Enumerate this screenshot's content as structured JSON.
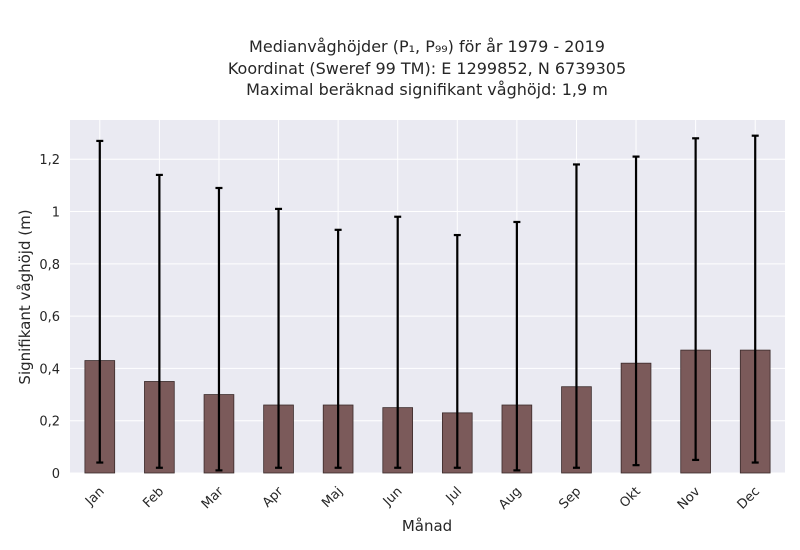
{
  "chart_data": {
    "type": "bar",
    "title_lines": [
      "Medianvåghöjder (P₁, P₉₉) för år 1979 - 2019",
      "Koordinat (Sweref 99 TM): E 1299852, N 6739305",
      "Maximal beräknad signifikant våghöjd: 1,9 m"
    ],
    "xlabel": "Månad",
    "ylabel": "Signifikant våghöjd (m)",
    "categories": [
      "Jan",
      "Feb",
      "Mar",
      "Apr",
      "Maj",
      "Jun",
      "Jul",
      "Aug",
      "Sep",
      "Okt",
      "Nov",
      "Dec"
    ],
    "values": [
      0.43,
      0.35,
      0.3,
      0.26,
      0.26,
      0.25,
      0.23,
      0.26,
      0.33,
      0.42,
      0.47,
      0.47
    ],
    "p1": [
      0.04,
      0.02,
      0.01,
      0.02,
      0.02,
      0.02,
      0.02,
      0.01,
      0.02,
      0.03,
      0.05,
      0.04
    ],
    "p99": [
      1.27,
      1.14,
      1.09,
      1.01,
      0.93,
      0.98,
      0.91,
      0.96,
      1.18,
      1.21,
      1.28,
      1.29
    ],
    "ylim": [
      0,
      1.35
    ],
    "yticks": [
      0,
      0.2,
      0.4,
      0.6,
      0.8,
      1.0,
      1.2
    ],
    "ytick_labels": [
      "0",
      "0,2",
      "0,4",
      "0,6",
      "0,8",
      "1",
      "1,2"
    ],
    "grid": true,
    "colors": {
      "bar": "#7b5a5a",
      "plot_background": "#eaeaf2",
      "error_bar": "#000000"
    }
  }
}
